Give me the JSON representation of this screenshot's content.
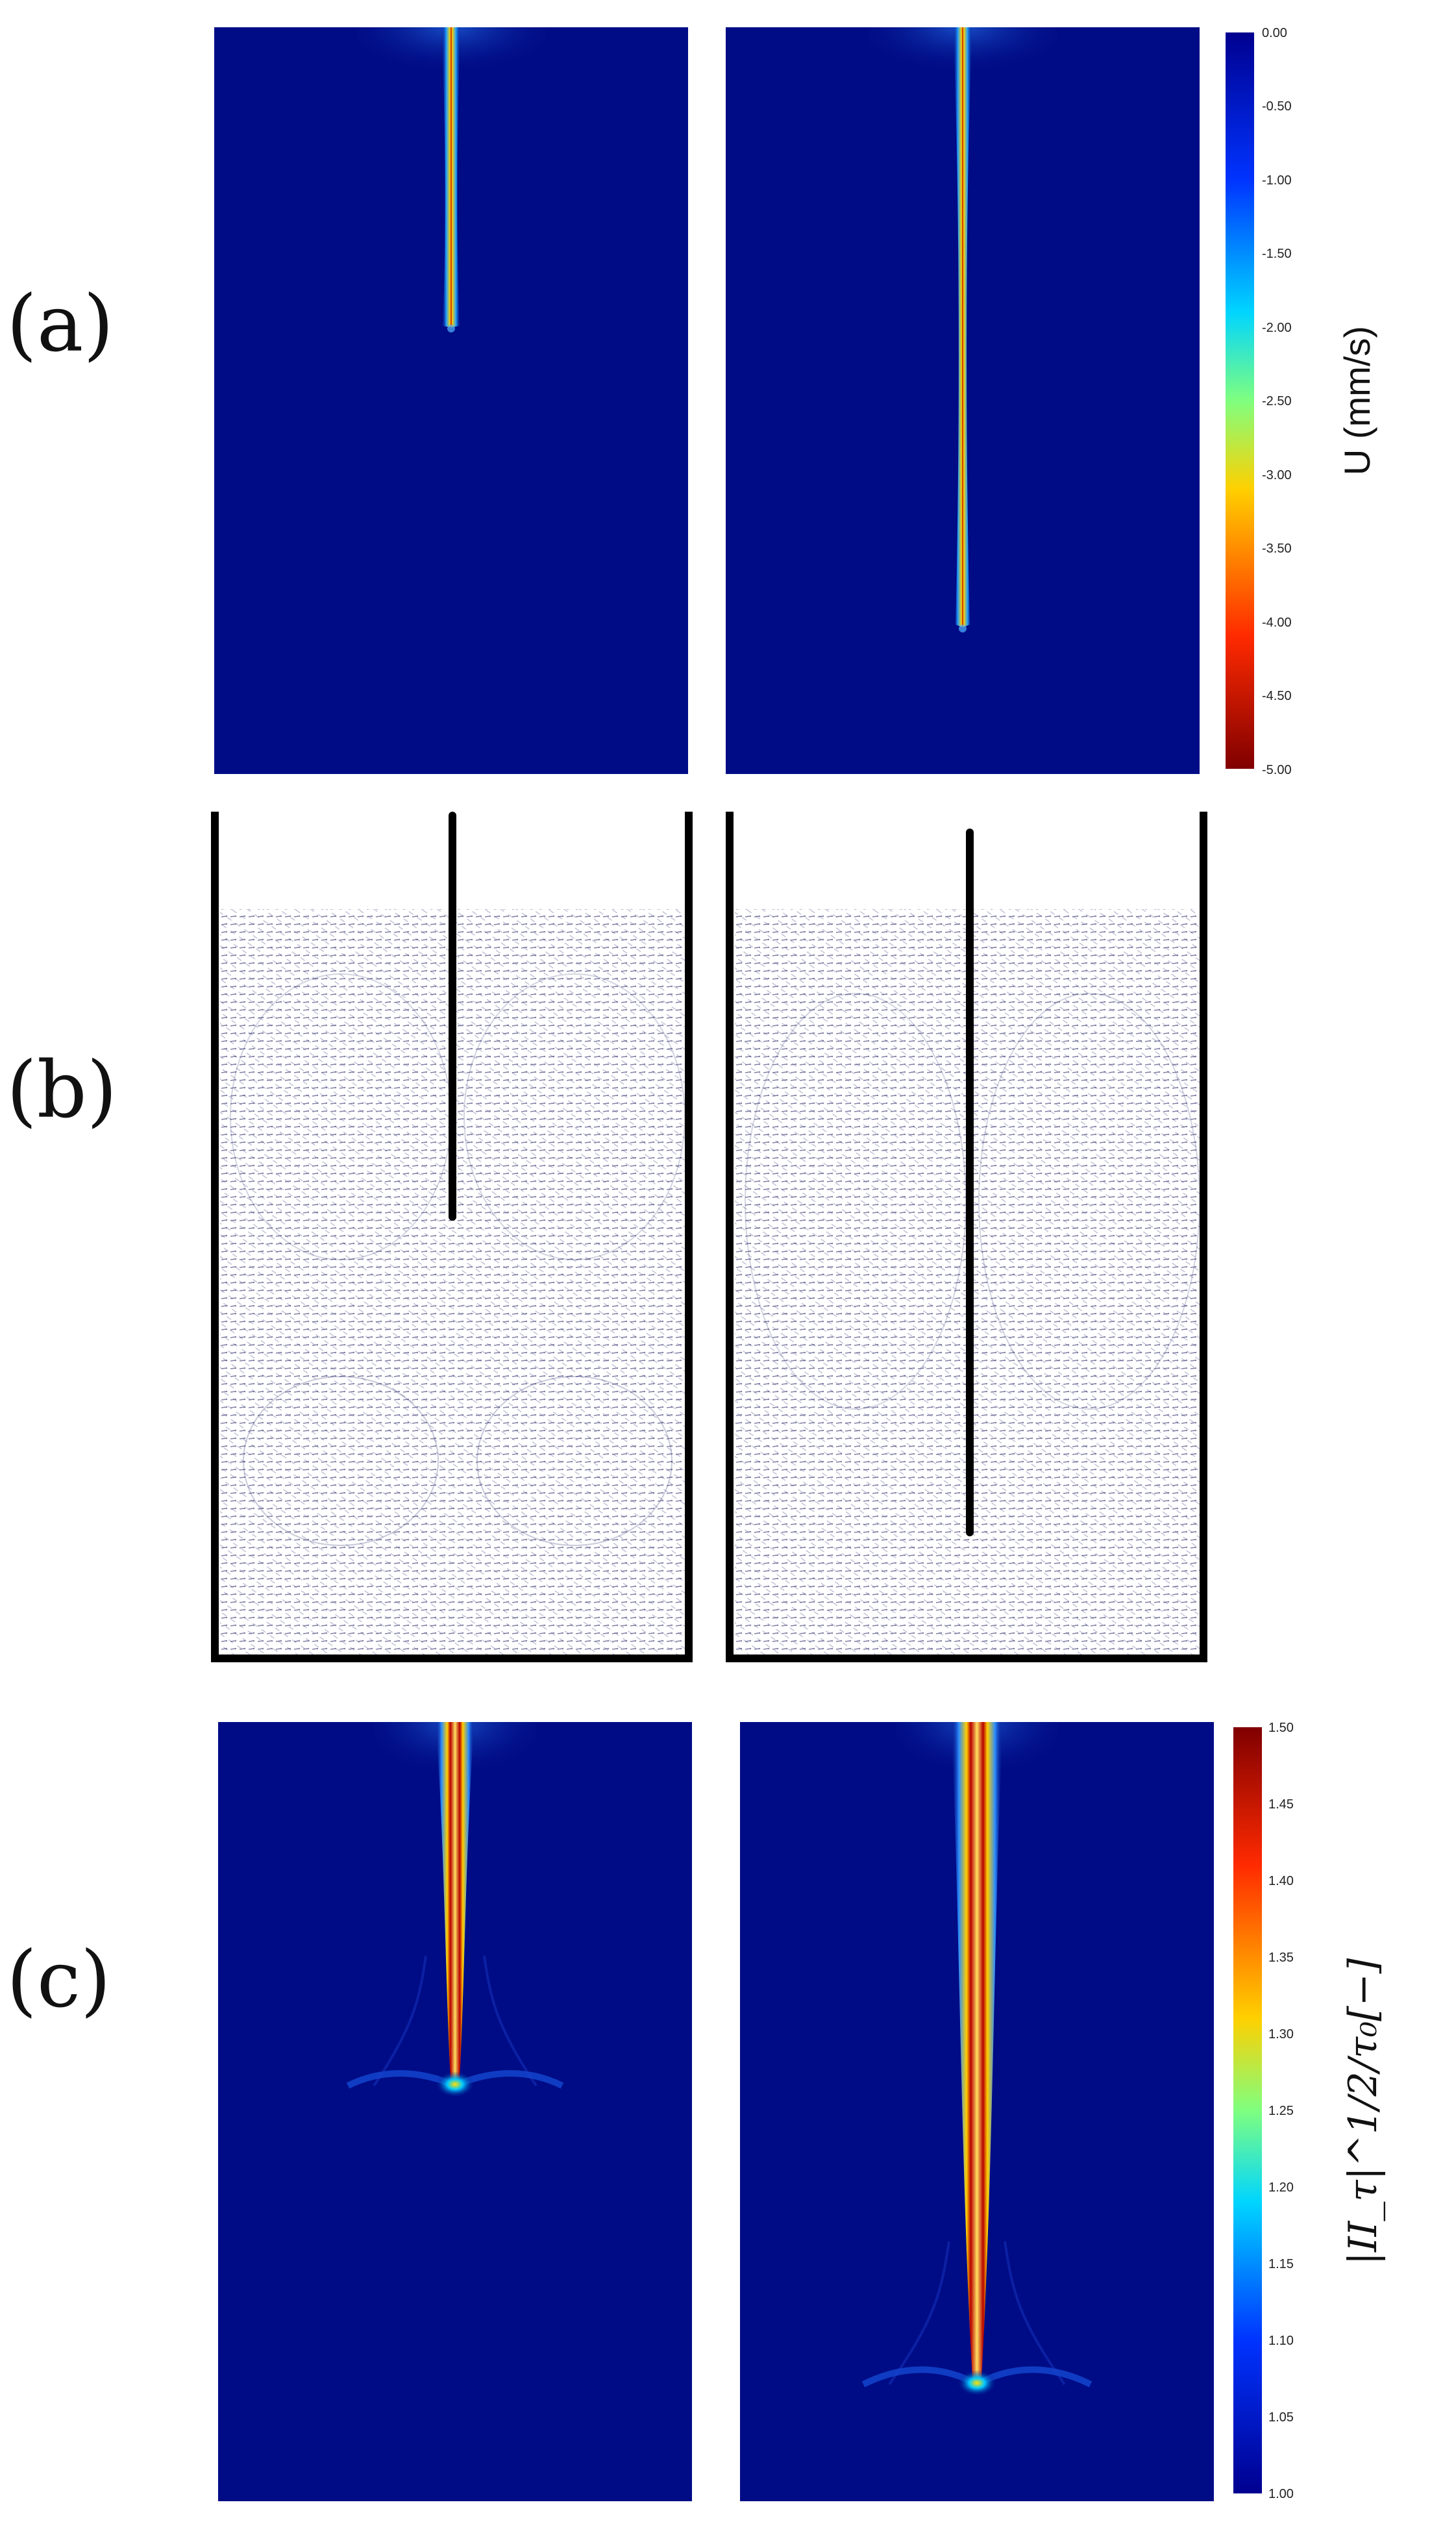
{
  "labels": {
    "a": "(a)",
    "b": "(b)",
    "c": "(c)"
  },
  "colorbar_a": {
    "title": "U (mm/s)",
    "ticks": [
      "0.00",
      "-0.50",
      "-1.00",
      "-1.50",
      "-2.00",
      "-2.50",
      "-3.00",
      "-3.50",
      "-4.00",
      "-4.50",
      "-5.00"
    ]
  },
  "colorbar_c": {
    "title": "|II_τ|^1/2/τ₀[−]",
    "ticks": [
      "1.50",
      "1.45",
      "1.40",
      "1.35",
      "1.30",
      "1.25",
      "1.20",
      "1.15",
      "1.10",
      "1.05",
      "1.00"
    ]
  },
  "colors": {
    "field_background": "#000c86",
    "rod": "#000000",
    "vectors": "#1a1a5e"
  }
}
